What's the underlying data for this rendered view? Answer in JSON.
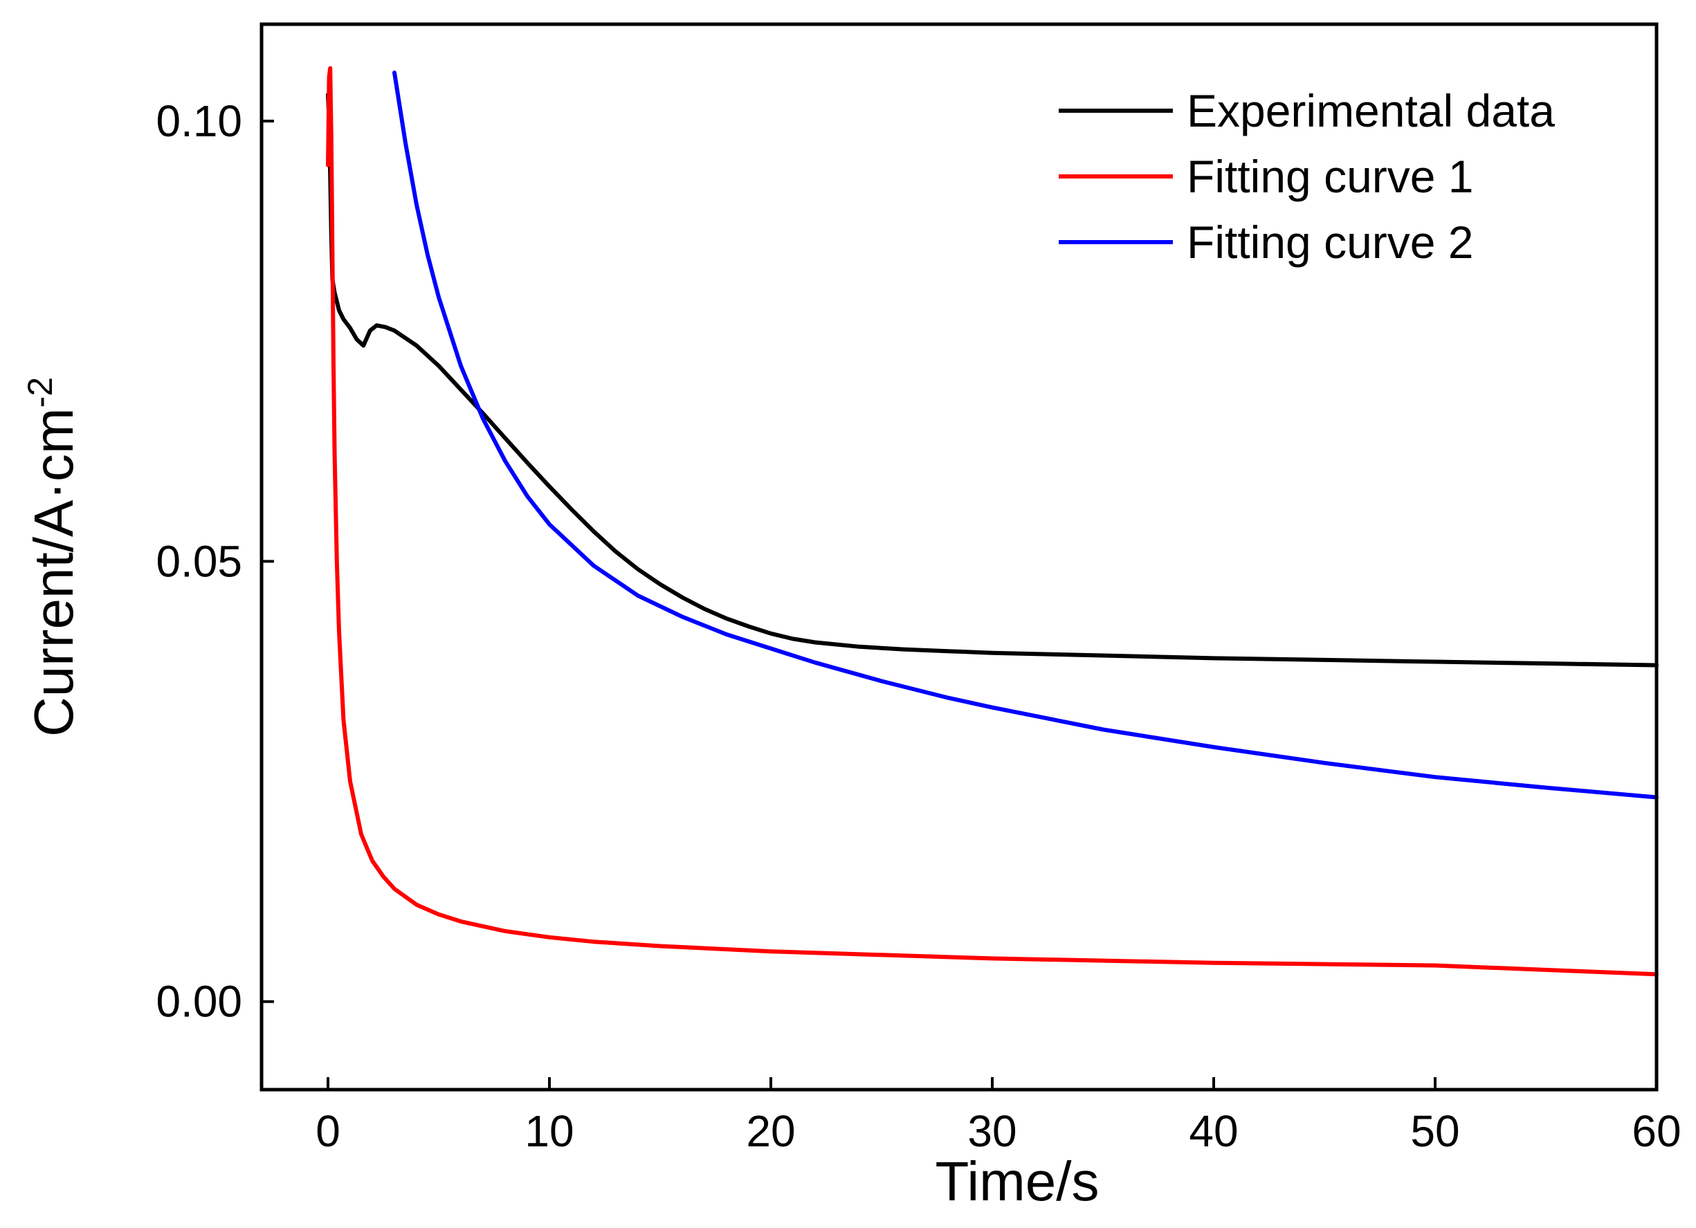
{
  "chart_data": {
    "type": "line",
    "title": "",
    "xlabel": "Time/s",
    "ylabel": {
      "main": "Current/A·cm",
      "superscript": "-2"
    },
    "xlim": [
      -3,
      60
    ],
    "ylim": [
      -0.01,
      0.111
    ],
    "x_ticks": [
      0,
      10,
      20,
      30,
      40,
      50,
      60
    ],
    "x_tick_labels": [
      "0",
      "10",
      "20",
      "30",
      "40",
      "50",
      "60"
    ],
    "y_ticks": [
      0.0,
      0.05,
      0.1
    ],
    "y_tick_labels": [
      "0.00",
      "0.05",
      "0.10"
    ],
    "grid": false,
    "legend_position": "top-right",
    "series": [
      {
        "name": "Experimental data",
        "color": "#000000",
        "x": [
          0.0,
          0.05,
          0.1,
          0.15,
          0.2,
          0.3,
          0.4,
          0.5,
          0.7,
          1.0,
          1.3,
          1.6,
          1.9,
          2.2,
          2.6,
          3.0,
          4.0,
          5.0,
          6.0,
          7.0,
          8.0,
          9.0,
          10.0,
          11.0,
          12.0,
          13.0,
          14.0,
          15.0,
          16.0,
          17.0,
          18.0,
          19.0,
          20.0,
          21.0,
          22.0,
          24.0,
          26.0,
          28.0,
          30.0,
          35.0,
          40.0,
          45.0,
          50.0,
          55.0,
          60.0
        ],
        "y": [
          0.103,
          0.1,
          0.094,
          0.087,
          0.082,
          0.0805,
          0.0795,
          0.0785,
          0.0775,
          0.0765,
          0.0752,
          0.0745,
          0.0762,
          0.0768,
          0.0766,
          0.0762,
          0.0745,
          0.0722,
          0.0695,
          0.0668,
          0.064,
          0.0612,
          0.0585,
          0.0559,
          0.0534,
          0.0511,
          0.0491,
          0.0474,
          0.0459,
          0.0446,
          0.0435,
          0.0426,
          0.0418,
          0.0412,
          0.0408,
          0.0403,
          0.04,
          0.0398,
          0.0396,
          0.0393,
          0.039,
          0.0388,
          0.0386,
          0.0384,
          0.0382
        ]
      },
      {
        "name": "Fitting curve 1",
        "color": "#ff0000",
        "x": [
          0.0,
          0.05,
          0.1,
          0.15,
          0.2,
          0.25,
          0.3,
          0.4,
          0.5,
          0.7,
          1.0,
          1.5,
          2.0,
          2.5,
          3.0,
          4.0,
          5.0,
          6.0,
          8.0,
          10.0,
          12.0,
          15.0,
          20.0,
          25.0,
          30.0,
          40.0,
          50.0,
          60.0
        ],
        "y": [
          0.095,
          0.105,
          0.106,
          0.098,
          0.085,
          0.072,
          0.062,
          0.05,
          0.042,
          0.032,
          0.025,
          0.019,
          0.016,
          0.0142,
          0.0128,
          0.011,
          0.0099,
          0.0091,
          0.008,
          0.0073,
          0.0068,
          0.0063,
          0.0057,
          0.0053,
          0.0049,
          0.0044,
          0.0041,
          0.0031
        ]
      },
      {
        "name": "Fitting curve 2",
        "color": "#0000ff",
        "x": [
          3.0,
          3.5,
          4.0,
          4.5,
          5.0,
          6.0,
          7.0,
          8.0,
          9.0,
          10.0,
          12.0,
          14.0,
          16.0,
          18.0,
          20.0,
          22.0,
          25.0,
          28.0,
          30.0,
          35.0,
          40.0,
          45.0,
          50.0,
          55.0,
          60.0
        ],
        "y": [
          0.1055,
          0.0975,
          0.0905,
          0.0848,
          0.08,
          0.0722,
          0.0662,
          0.0614,
          0.0574,
          0.0542,
          0.0495,
          0.0461,
          0.0437,
          0.0417,
          0.0401,
          0.0385,
          0.0364,
          0.0345,
          0.0334,
          0.0309,
          0.0289,
          0.0271,
          0.0255,
          0.0243,
          0.0232
        ]
      }
    ]
  }
}
